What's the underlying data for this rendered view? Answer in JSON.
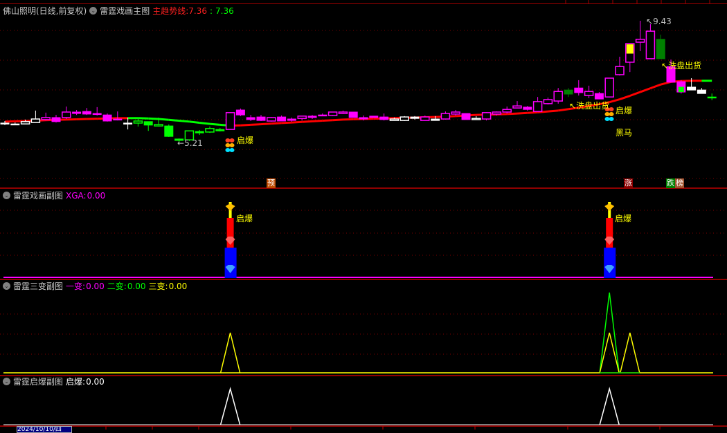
{
  "header": {
    "stock": "佛山照明(日线,前复权)",
    "indicator": "雷霆戏画主图",
    "trend_label": "主趋势线:",
    "trend_value_red": "7.36",
    "trend_value_green": "7.36"
  },
  "main": {
    "high_label": "9.43",
    "low_label": "5.21",
    "signal_labels": [
      "启爆",
      "启爆",
      "黑马",
      "洗盘出货",
      "洗盘出货"
    ],
    "badges": [
      {
        "text": "预",
        "color": "#c04a00"
      },
      {
        "text": "涨",
        "color": "#8b0000"
      },
      {
        "text": "跌",
        "color": "#008000"
      },
      {
        "text": "榜",
        "color": "#a0522d"
      }
    ],
    "colors": {
      "up_trend": "#ff0000",
      "down_trend": "#00ff00",
      "magenta": "#ff00ff",
      "white": "#ffffff",
      "green": "#00ff00",
      "darkgreen": "#008000",
      "yellow": "#ffff00"
    },
    "candles": [
      [
        5.9,
        5.97,
        5.83,
        5.87,
        "white",
        "filled"
      ],
      [
        5.87,
        5.92,
        5.83,
        5.85,
        "white",
        "filled"
      ],
      [
        5.87,
        6.02,
        5.87,
        5.95,
        "white",
        "hollow"
      ],
      [
        5.92,
        6.33,
        5.92,
        6.04,
        "white",
        "hollow"
      ],
      [
        6.02,
        6.26,
        5.99,
        6.09,
        "magenta",
        "hollow"
      ],
      [
        6.09,
        6.18,
        5.92,
        5.95,
        "magenta",
        "filled"
      ],
      [
        6.09,
        6.47,
        6.04,
        6.28,
        "magenta",
        "hollow"
      ],
      [
        6.28,
        6.35,
        6.18,
        6.23,
        "magenta",
        "filled"
      ],
      [
        6.3,
        6.42,
        6.18,
        6.21,
        "magenta",
        "filled"
      ],
      [
        6.23,
        6.45,
        6.16,
        6.21,
        "magenta",
        "filled"
      ],
      [
        6.18,
        6.23,
        5.95,
        5.97,
        "magenta",
        "filled"
      ],
      [
        6.04,
        6.3,
        5.99,
        6.02,
        "magenta",
        "filled"
      ],
      [
        5.9,
        6.09,
        5.68,
        5.89,
        "white",
        "filled"
      ],
      [
        5.9,
        6.04,
        5.78,
        5.97,
        "green",
        "hollow"
      ],
      [
        5.95,
        5.95,
        5.63,
        5.83,
        "green",
        "filled"
      ],
      [
        5.8,
        6.09,
        5.78,
        5.85,
        "green",
        "hollow"
      ],
      [
        5.8,
        5.85,
        5.42,
        5.44,
        "green",
        "filled"
      ],
      [
        5.35,
        5.37,
        5.21,
        5.3,
        "green",
        "filled"
      ],
      [
        5.32,
        5.63,
        5.28,
        5.63,
        "green",
        "hollow"
      ],
      [
        5.61,
        5.66,
        5.49,
        5.56,
        "green",
        "filled"
      ],
      [
        5.59,
        5.78,
        5.56,
        5.71,
        "green",
        "hollow"
      ],
      [
        5.68,
        5.73,
        5.61,
        5.63,
        "green",
        "filled"
      ],
      [
        5.68,
        6.26,
        5.68,
        6.26,
        "magenta",
        "hollow"
      ],
      [
        6.35,
        6.4,
        6.14,
        6.18,
        "magenta",
        "filled"
      ],
      [
        6.09,
        6.18,
        5.97,
        6.02,
        "magenta",
        "filled"
      ],
      [
        6.11,
        6.18,
        5.97,
        5.99,
        "magenta",
        "filled"
      ],
      [
        5.97,
        6.11,
        5.95,
        6.09,
        "magenta",
        "hollow"
      ],
      [
        6.11,
        6.16,
        5.97,
        5.97,
        "magenta",
        "filled"
      ],
      [
        6.04,
        6.09,
        5.95,
        5.99,
        "magenta",
        "filled"
      ],
      [
        6.06,
        6.14,
        5.99,
        6.14,
        "magenta",
        "hollow"
      ],
      [
        6.14,
        6.18,
        6.04,
        6.09,
        "magenta",
        "filled"
      ],
      [
        6.18,
        6.23,
        6.14,
        6.16,
        "magenta",
        "filled"
      ],
      [
        6.16,
        6.28,
        6.14,
        6.28,
        "magenta",
        "hollow"
      ],
      [
        6.23,
        6.33,
        6.21,
        6.28,
        "magenta",
        "hollow"
      ],
      [
        6.28,
        6.28,
        6.09,
        6.09,
        "magenta",
        "filled"
      ],
      [
        6.09,
        6.16,
        5.99,
        6.04,
        "magenta",
        "filled"
      ],
      [
        6.14,
        6.14,
        6.09,
        6.09,
        "magenta",
        "filled"
      ],
      [
        6.11,
        6.23,
        5.99,
        6.02,
        "magenta",
        "filled"
      ],
      [
        5.99,
        6.09,
        5.99,
        6.04,
        "white",
        "hollow"
      ],
      [
        5.99,
        6.14,
        5.97,
        6.11,
        "white",
        "hollow"
      ],
      [
        6.11,
        6.14,
        6.02,
        6.06,
        "white",
        "filled"
      ],
      [
        5.99,
        6.16,
        5.99,
        6.11,
        "magenta",
        "hollow"
      ],
      [
        6.04,
        6.14,
        5.99,
        5.99,
        "white",
        "filled"
      ],
      [
        6.04,
        6.3,
        6.02,
        6.23,
        "magenta",
        "hollow"
      ],
      [
        6.21,
        6.35,
        6.16,
        6.28,
        "magenta",
        "hollow"
      ],
      [
        6.23,
        6.23,
        6.02,
        6.02,
        "magenta",
        "filled"
      ],
      [
        6.02,
        6.14,
        6.02,
        6.06,
        "white",
        "hollow"
      ],
      [
        6.04,
        6.28,
        5.99,
        6.26,
        "magenta",
        "hollow"
      ],
      [
        6.21,
        6.3,
        6.16,
        6.28,
        "magenta",
        "hollow"
      ],
      [
        6.28,
        6.47,
        6.23,
        6.37,
        "magenta",
        "hollow"
      ],
      [
        6.42,
        6.66,
        6.42,
        6.49,
        "magenta",
        "hollow"
      ],
      [
        6.45,
        6.49,
        6.33,
        6.37,
        "magenta",
        "filled"
      ],
      [
        6.3,
        6.8,
        6.3,
        6.64,
        "magenta",
        "hollow"
      ],
      [
        6.57,
        6.78,
        6.54,
        6.71,
        "magenta",
        "hollow"
      ],
      [
        6.66,
        7.11,
        6.57,
        6.99,
        "magenta",
        "hollow"
      ],
      [
        7.04,
        7.11,
        6.8,
        6.9,
        "darkgreen",
        "filled"
      ],
      [
        7.11,
        7.38,
        6.85,
        6.95,
        "magenta",
        "filled"
      ],
      [
        6.85,
        7.19,
        6.76,
        6.99,
        "magenta",
        "hollow"
      ],
      [
        6.92,
        6.97,
        6.73,
        6.73,
        "magenta",
        "filled"
      ],
      [
        6.8,
        7.45,
        6.78,
        7.45,
        "magenta",
        "hollow"
      ],
      [
        7.57,
        8.19,
        7.54,
        7.85,
        "magenta",
        "hollow"
      ],
      [
        8.0,
        8.64,
        7.66,
        8.64,
        "magenta",
        "hollow-yellow"
      ],
      [
        8.69,
        9.43,
        8.38,
        8.79,
        "magenta",
        "hollow"
      ],
      [
        8.12,
        9.31,
        8.12,
        9.07,
        "magenta",
        "hollow"
      ],
      [
        8.79,
        8.95,
        8.12,
        8.12,
        "darkgreen",
        "filled"
      ],
      [
        7.85,
        8.09,
        7.31,
        7.31,
        "magenta",
        "filled"
      ],
      [
        7.33,
        7.38,
        6.92,
        6.97,
        "magenta",
        "filled-green"
      ],
      [
        7.14,
        7.45,
        7.04,
        7.04,
        "white",
        "filled"
      ],
      [
        7.04,
        7.11,
        6.92,
        6.92,
        "white",
        "filled"
      ],
      [
        6.8,
        6.92,
        6.69,
        6.78,
        "green",
        "filled"
      ]
    ],
    "trend": [
      5.95,
      5.96,
      5.97,
      5.98,
      6.0,
      6.01,
      6.02,
      6.03,
      6.04,
      6.05,
      6.06,
      6.07,
      6.07,
      6.07,
      6.06,
      6.04,
      6.01,
      5.98,
      5.95,
      5.91,
      5.87,
      5.84,
      5.81,
      5.82,
      5.84,
      5.86,
      5.88,
      5.9,
      5.92,
      5.94,
      5.96,
      5.98,
      6.0,
      6.02,
      6.03,
      6.04,
      6.05,
      6.06,
      6.07,
      6.08,
      6.09,
      6.1,
      6.11,
      6.12,
      6.14,
      6.16,
      6.18,
      6.19,
      6.2,
      6.21,
      6.23,
      6.25,
      6.27,
      6.3,
      6.33,
      6.38,
      6.43,
      6.49,
      6.55,
      6.62,
      6.72,
      6.84,
      6.97,
      7.1,
      7.23,
      7.32,
      7.35,
      7.36,
      7.36,
      7.36
    ],
    "trend_green_range": [
      12,
      22
    ]
  },
  "sub1": {
    "title": "雷霆戏画副图",
    "label": "XGA:",
    "value": "0.00",
    "signal_label": "启爆",
    "signals": [
      22,
      59
    ]
  },
  "sub2": {
    "title": "雷霆三变副图",
    "labels": [
      "一变:",
      "二变:",
      "三变:"
    ],
    "values": [
      "0.00",
      "0.00",
      "0.00"
    ],
    "colors": [
      "#ff00ff",
      "#00ff00",
      "#ffff00"
    ],
    "series": {
      "yellow": {
        "22": 1,
        "59": 1,
        "61": 1
      },
      "green": {
        "59": 2
      }
    }
  },
  "sub3": {
    "title": "雷霆启爆副图",
    "label": "启爆:",
    "value": "0.00",
    "signals": {
      "22": 1,
      "59": 1
    }
  },
  "footer": {
    "date": "2024/10/10/四"
  }
}
